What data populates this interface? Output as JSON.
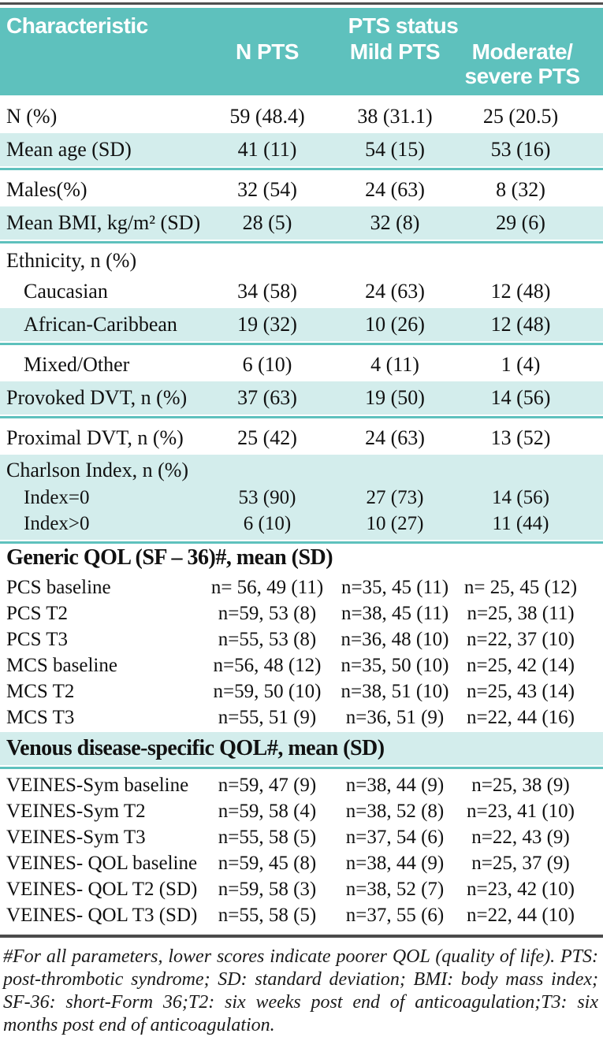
{
  "colors": {
    "teal": "#5ec1bd",
    "teal_light": "#d3edec",
    "rule_dark": "#4b4b4b",
    "header_text": "#ffffff"
  },
  "table": {
    "header": {
      "characteristic": "Characteristic",
      "group": "PTS status",
      "columns": [
        "N PTS",
        "Mild PTS",
        "Moderate/ severe PTS"
      ]
    },
    "rows": [
      {
        "type": "data",
        "size": "lg",
        "stripe": false,
        "label": "N (%)",
        "values": [
          "59 (48.4)",
          "38 (31.1)",
          "25 (20.5)"
        ]
      },
      {
        "type": "data",
        "size": "lg",
        "stripe": true,
        "label": "Mean age (SD)",
        "values": [
          "41 (11)",
          "54 (15)",
          "53 (16)"
        ]
      },
      {
        "type": "data",
        "size": "lg",
        "stripe": false,
        "label": "Males(%)",
        "values": [
          "32 (54)",
          "24 (63)",
          "8 (32)"
        ]
      },
      {
        "type": "data",
        "size": "lg",
        "stripe": true,
        "label": "Mean BMI, kg/m² (SD)",
        "values": [
          "28 (5)",
          "32 (8)",
          "29 (6)"
        ]
      },
      {
        "type": "group-label",
        "label": "Ethnicity, n (%)"
      },
      {
        "type": "data",
        "size": "lg",
        "indent": true,
        "stripe": false,
        "label": "Caucasian",
        "values": [
          "34 (58)",
          "24 (63)",
          "12 (48)"
        ]
      },
      {
        "type": "data",
        "size": "lg",
        "indent": true,
        "stripe": true,
        "label": "African-Caribbean",
        "values": [
          "19 (32)",
          "10 (26)",
          "12 (48)"
        ]
      },
      {
        "type": "data",
        "size": "lg",
        "indent": true,
        "stripe": false,
        "label": "Mixed/Other",
        "values": [
          "6 (10)",
          "4 (11)",
          "1 (4)"
        ]
      },
      {
        "type": "data",
        "size": "lg",
        "stripe": true,
        "label": "Provoked DVT, n (%)",
        "values": [
          "37 (63)",
          "19 (50)",
          "14 (56)"
        ]
      },
      {
        "type": "data",
        "size": "lg",
        "stripe": false,
        "label": "Proximal DVT, n (%)",
        "values": [
          "25 (42)",
          "24 (63)",
          "13 (52)"
        ]
      },
      {
        "type": "block",
        "stripe": true,
        "rows": [
          {
            "type": "group-label",
            "label": "Charlson Index, n (%)"
          },
          {
            "type": "data",
            "size": "compact",
            "indent": true,
            "label": "Index=0",
            "values": [
              "53 (90)",
              "27 (73)",
              "14 (56)"
            ]
          },
          {
            "type": "data",
            "size": "compact",
            "indent": true,
            "label": "Index>0",
            "values": [
              "6 (10)",
              "10 (27)",
              "11 (44)"
            ]
          }
        ]
      },
      {
        "type": "section",
        "stripe": false,
        "label": "Generic QOL (SF – 36)#, mean (SD)"
      },
      {
        "type": "data",
        "size": "compact",
        "stripe": false,
        "label": "PCS baseline",
        "values": [
          "n= 56, 49 (11)",
          "n=35, 45 (11)",
          "n= 25, 45 (12)"
        ]
      },
      {
        "type": "data",
        "size": "compact",
        "stripe": false,
        "label": "PCS T2",
        "values": [
          "n=59, 53 (8)",
          "n=38, 45 (11)",
          "n=25, 38 (11)"
        ]
      },
      {
        "type": "data",
        "size": "compact",
        "stripe": false,
        "label": "PCS T3",
        "values": [
          "n=55, 53 (8)",
          "n=36, 48 (10)",
          "n=22, 37 (10)"
        ]
      },
      {
        "type": "data",
        "size": "compact",
        "stripe": false,
        "label": "MCS baseline",
        "values": [
          "n=56, 48 (12)",
          "n=35, 50 (10)",
          "n=25, 42 (14)"
        ]
      },
      {
        "type": "data",
        "size": "compact",
        "stripe": false,
        "label": "MCS T2",
        "values": [
          "n=59, 50 (10)",
          "n=38, 51 (10)",
          "n=25, 43 (14)"
        ]
      },
      {
        "type": "data",
        "size": "compact",
        "stripe": false,
        "label": "MCS T3",
        "values": [
          "n=55, 51 (9)",
          "n=36, 51 (9)",
          "n=22, 44 (16)"
        ]
      },
      {
        "type": "section",
        "stripe": true,
        "label": "Venous disease-specific QOL#, mean (SD)"
      },
      {
        "type": "data",
        "size": "compact",
        "stripe": false,
        "label": "VEINES-Sym baseline",
        "values": [
          "n=59, 47 (9)",
          "n=38, 44 (9)",
          "n=25, 38 (9)"
        ]
      },
      {
        "type": "data",
        "size": "compact",
        "stripe": false,
        "label": "VEINES-Sym T2",
        "values": [
          "n=59, 58 (4)",
          "n=38, 52 (8)",
          "n=23, 41 (10)"
        ]
      },
      {
        "type": "data",
        "size": "compact",
        "stripe": false,
        "label": "VEINES-Sym T3",
        "values": [
          "n=55, 58 (5)",
          "n=37, 54 (6)",
          "n=22, 43 (9)"
        ]
      },
      {
        "type": "data",
        "size": "compact",
        "stripe": false,
        "label": "VEINES- QOL baseline",
        "values": [
          "n=59, 45 (8)",
          "n=38, 44 (9)",
          "n=25, 37 (9)"
        ]
      },
      {
        "type": "data",
        "size": "compact",
        "stripe": false,
        "label": "VEINES- QOL T2 (SD)",
        "values": [
          "n=59, 58 (3)",
          "n=38, 52 (7)",
          "n=23, 42 (10)"
        ]
      },
      {
        "type": "data",
        "size": "compact",
        "stripe": false,
        "label": "VEINES- QOL T3 (SD)",
        "values": [
          "n=55, 58 (5)",
          "n=37, 55 (6)",
          "n=22, 44 (10)"
        ]
      }
    ]
  },
  "footnote": {
    "text": "#For all parameters, lower scores indicate poorer QOL (quality of life). PTS: post-thrombotic syndrome; SD: standard deviation; BMI: body mass index; SF-36: short-Form 36;T2: six weeks post end of anticoagulation;T3: six months post end of anticoagulation."
  }
}
